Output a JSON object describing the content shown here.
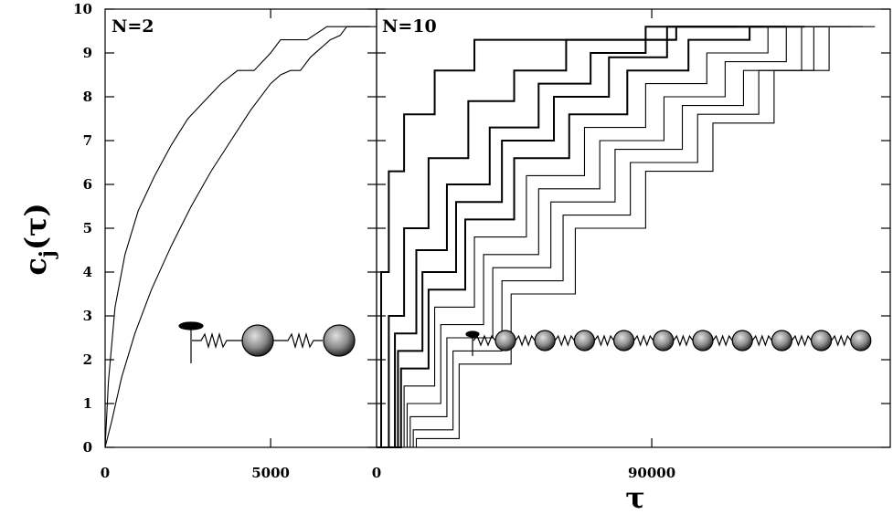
{
  "chart_data": [
    {
      "type": "line",
      "panel_label": "N=2",
      "xlim": [
        0,
        8200
      ],
      "ylim": [
        0,
        10
      ],
      "x_ticks": [
        0,
        5000
      ],
      "x_tick_labels": [
        "0",
        "5000"
      ],
      "y_ticks": [
        0,
        1,
        2,
        3,
        4,
        5,
        6,
        7,
        8,
        9,
        10
      ],
      "y_tick_labels": [
        "0",
        "1",
        "2",
        "3",
        "4",
        "5",
        "6",
        "7",
        "8",
        "9",
        "10"
      ],
      "ylabel": "c_j(τ)",
      "xlabel": "",
      "inset": "chain-2-masses",
      "series": [
        {
          "x": [
            0,
            100,
            300,
            600,
            1000,
            1500,
            2000,
            2500,
            3000,
            3500,
            4000,
            4500,
            5000,
            5300,
            5400,
            5600,
            6100,
            6700,
            8000
          ],
          "y": [
            0,
            1.5,
            3.2,
            4.4,
            5.4,
            6.2,
            6.9,
            7.5,
            7.9,
            8.3,
            8.6,
            8.6,
            9.0,
            9.3,
            9.3,
            9.3,
            9.3,
            9.6,
            9.6
          ]
        },
        {
          "x": [
            0,
            200,
            500,
            900,
            1400,
            2000,
            2600,
            3200,
            3800,
            4400,
            5000,
            5300,
            5600,
            5900,
            6200,
            6500,
            6800,
            7100,
            7300,
            7400,
            7700,
            8200
          ],
          "y": [
            0,
            0.6,
            1.6,
            2.6,
            3.6,
            4.6,
            5.5,
            6.3,
            7.0,
            7.7,
            8.3,
            8.5,
            8.6,
            8.6,
            8.9,
            9.1,
            9.3,
            9.4,
            9.6,
            9.6,
            9.6,
            9.6
          ]
        }
      ]
    },
    {
      "type": "line",
      "panel_label": "N=10",
      "xlim": [
        0,
        168000
      ],
      "ylim": [
        0,
        10
      ],
      "x_ticks": [
        0,
        90000
      ],
      "x_tick_labels": [
        "0",
        "90000"
      ],
      "y_ticks": [
        0,
        1,
        2,
        3,
        4,
        5,
        6,
        7,
        8,
        9,
        10
      ],
      "xlabel": "τ",
      "ylabel": "",
      "inset": "chain-10-masses",
      "series": [
        {
          "x": [
            0,
            1500,
            4000,
            9000,
            19000,
            32000,
            46000,
            62000,
            80000,
            98000
          ],
          "y": [
            0,
            4.0,
            6.3,
            7.6,
            8.6,
            9.3,
            9.3,
            9.3,
            9.3,
            9.3
          ]
        },
        {
          "x": [
            0,
            4000,
            9000,
            17000,
            30000,
            45000,
            62000,
            80000,
            98000,
            118000
          ],
          "y": [
            0,
            3.0,
            5.0,
            6.6,
            7.9,
            8.6,
            9.3,
            9.3,
            9.6,
            9.6
          ]
        },
        {
          "x": [
            0,
            6000,
            13000,
            23000,
            37000,
            53000,
            70000,
            88000,
            107000,
            126000
          ],
          "y": [
            0,
            2.6,
            4.5,
            6.0,
            7.3,
            8.3,
            9.0,
            9.6,
            9.6,
            9.6
          ]
        },
        {
          "x": [
            0,
            7000,
            15000,
            26000,
            41000,
            58000,
            76000,
            95000,
            115000,
            134000
          ],
          "y": [
            0,
            2.2,
            4.0,
            5.6,
            7.0,
            8.0,
            8.9,
            9.6,
            9.6,
            9.6
          ]
        },
        {
          "x": [
            0,
            8000,
            17000,
            29000,
            45000,
            63000,
            82000,
            102000,
            122000,
            140000
          ],
          "y": [
            0,
            1.8,
            3.6,
            5.2,
            6.6,
            7.6,
            8.6,
            9.3,
            9.6,
            9.6
          ]
        },
        {
          "x": [
            0,
            9000,
            19000,
            32000,
            49000,
            68000,
            88000,
            108000,
            128000,
            145000
          ],
          "y": [
            0,
            1.4,
            3.2,
            4.8,
            6.2,
            7.3,
            8.3,
            9.0,
            9.6,
            9.6
          ]
        },
        {
          "x": [
            0,
            10000,
            21000,
            35000,
            53000,
            73000,
            94000,
            114000,
            134000,
            150000
          ],
          "y": [
            0,
            1.0,
            2.8,
            4.4,
            5.9,
            7.0,
            8.0,
            8.8,
            9.6,
            9.6
          ]
        },
        {
          "x": [
            0,
            11000,
            23000,
            38000,
            57000,
            78000,
            100000,
            120000,
            139000,
            155000
          ],
          "y": [
            0,
            0.7,
            2.5,
            4.1,
            5.6,
            6.8,
            7.8,
            8.6,
            9.6,
            9.6
          ]
        },
        {
          "x": [
            0,
            12000,
            25000,
            41000,
            61000,
            83000,
            105000,
            125000,
            143000,
            159000
          ],
          "y": [
            0,
            0.4,
            2.2,
            3.8,
            5.3,
            6.5,
            7.6,
            8.6,
            9.6,
            9.6
          ]
        },
        {
          "x": [
            0,
            13000,
            27000,
            44000,
            65000,
            88000,
            110000,
            130000,
            148000,
            163000
          ],
          "y": [
            0,
            0.2,
            1.9,
            3.5,
            5.0,
            6.3,
            7.4,
            8.6,
            9.6,
            9.6
          ]
        }
      ]
    }
  ],
  "colors": {
    "line": "#000000",
    "background": "#ffffff",
    "ball_light": "#e0e0e0",
    "ball_dark": "#2a2a2a"
  }
}
